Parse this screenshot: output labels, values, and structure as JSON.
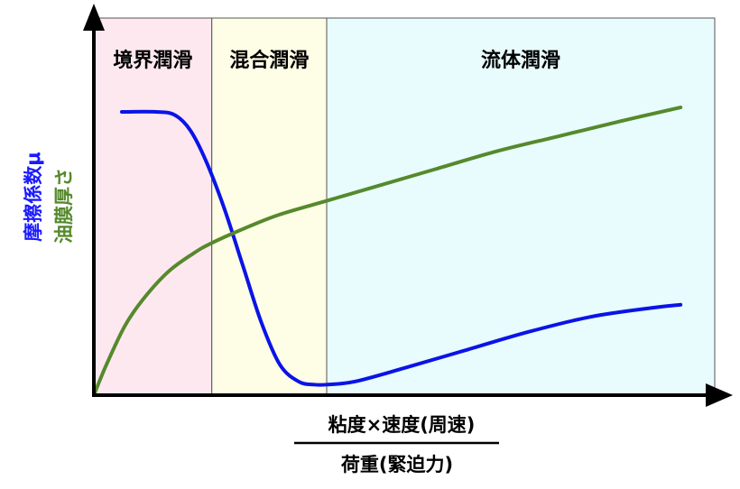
{
  "chart_data": {
    "type": "line",
    "title": "",
    "xlabel_numerator": "粘度×速度(周速)",
    "xlabel_denominator": "荷重(緊迫力)",
    "ylabels": [
      "摩擦係数μ",
      "油膜厚さ"
    ],
    "regions": [
      {
        "label": "境界潤滑",
        "color": "#fde8f0",
        "x_start": 0,
        "x_end": 0.19
      },
      {
        "label": "混合潤滑",
        "color": "#fefde6",
        "x_start": 0.19,
        "x_end": 0.375
      },
      {
        "label": "流体潤滑",
        "color": "#e8fcfe",
        "x_start": 0.375,
        "x_end": 1.0
      }
    ],
    "series": [
      {
        "name": "摩擦係数μ",
        "color": "#0a14e6",
        "x": [
          0.045,
          0.1,
          0.13,
          0.155,
          0.18,
          0.21,
          0.24,
          0.27,
          0.3,
          0.33,
          0.355,
          0.375,
          0.42,
          0.5,
          0.6,
          0.7,
          0.8,
          0.9,
          0.945
        ],
        "y": [
          0.94,
          0.94,
          0.93,
          0.88,
          0.78,
          0.62,
          0.43,
          0.24,
          0.1,
          0.045,
          0.035,
          0.035,
          0.045,
          0.09,
          0.15,
          0.21,
          0.26,
          0.29,
          0.3
        ]
      },
      {
        "name": "油膜厚さ",
        "color": "#56892c",
        "x": [
          0.0,
          0.02,
          0.05,
          0.08,
          0.12,
          0.16,
          0.19,
          0.25,
          0.3,
          0.375,
          0.45,
          0.55,
          0.65,
          0.75,
          0.85,
          0.945
        ],
        "y": [
          0.0,
          0.1,
          0.23,
          0.32,
          0.41,
          0.47,
          0.505,
          0.56,
          0.6,
          0.645,
          0.69,
          0.75,
          0.81,
          0.86,
          0.91,
          0.955
        ]
      }
    ],
    "xlim": [
      0,
      1
    ],
    "ylim": [
      0,
      1
    ],
    "grid": false
  }
}
